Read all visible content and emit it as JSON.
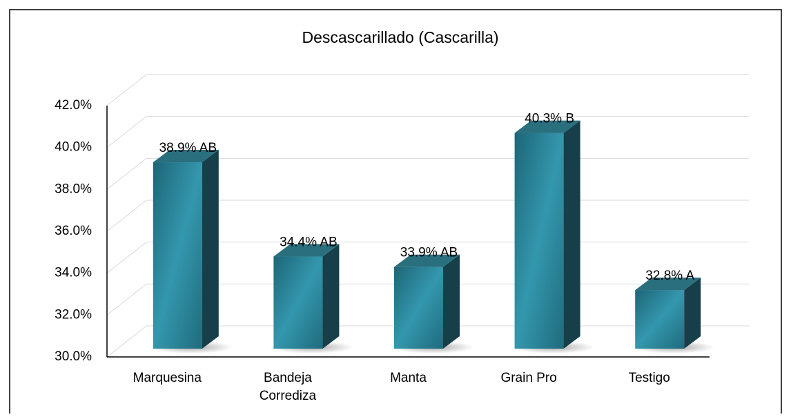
{
  "chart_data": {
    "type": "bar3d",
    "title": "Descascarillado (Cascarilla)",
    "categories": [
      "Marquesina",
      "Bandeja Corrediza",
      "Manta",
      "Grain Pro",
      "Testigo"
    ],
    "values": [
      38.9,
      34.4,
      33.9,
      40.3,
      32.8
    ],
    "value_labels": [
      "38.9% AB",
      "34.4% AB",
      "33.9% AB",
      "40.3% B",
      "32.8% A"
    ],
    "color": "#2b8a9c",
    "ylim": [
      30,
      42
    ],
    "yticks": [
      {
        "value": 30,
        "label": "30.0%"
      },
      {
        "value": 32,
        "label": "32.0%"
      },
      {
        "value": 34,
        "label": "34.0%"
      },
      {
        "value": 36,
        "label": "36.0%"
      },
      {
        "value": 38,
        "label": "38.0%"
      },
      {
        "value": 40,
        "label": "40.0%"
      },
      {
        "value": 42,
        "label": "42.0%"
      }
    ],
    "grid": true
  }
}
